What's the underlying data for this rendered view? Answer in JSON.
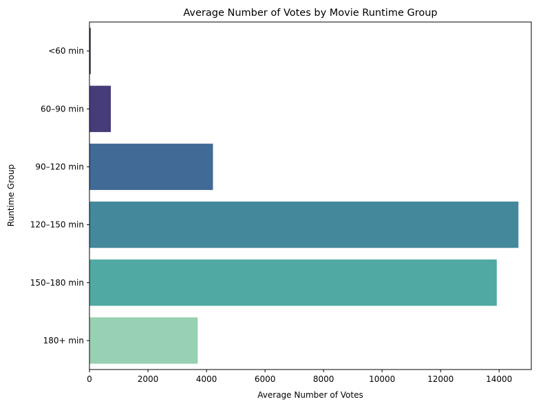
{
  "chart_data": {
    "type": "bar",
    "orientation": "horizontal",
    "title": "Average Number of Votes by Movie Runtime Group",
    "xlabel": "Average Number of Votes",
    "ylabel": "Runtime Group",
    "categories": [
      "<60 min",
      "60–90 min",
      "90–120 min",
      "120–150 min",
      "150–180 min",
      "180+ min"
    ],
    "values": [
      40,
      730,
      4220,
      14660,
      13920,
      3700
    ],
    "colors": [
      "#2c1e3d",
      "#463c7a",
      "#416a97",
      "#43889b",
      "#50a9a2",
      "#97d0b2"
    ],
    "xlim": [
      0,
      15100
    ],
    "xticks": [
      0,
      2000,
      4000,
      6000,
      8000,
      10000,
      12000,
      14000
    ],
    "grid": false,
    "legend": "none"
  }
}
